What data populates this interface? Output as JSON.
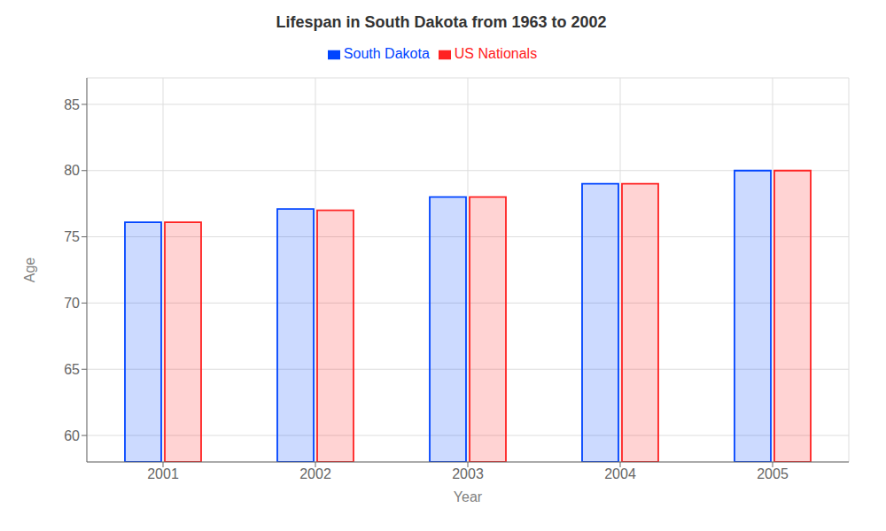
{
  "chart_data": {
    "type": "bar",
    "title": "Lifespan in South Dakota from 1963 to 2002",
    "xlabel": "Year",
    "ylabel": "Age",
    "categories": [
      "2001",
      "2002",
      "2003",
      "2004",
      "2005"
    ],
    "series": [
      {
        "name": "South Dakota",
        "color": "#0044ff",
        "values": [
          76.1,
          77.1,
          78.0,
          79.0,
          80.0
        ]
      },
      {
        "name": "US Nationals",
        "color": "#ff2222",
        "values": [
          76.1,
          77.0,
          78.0,
          79.0,
          80.0
        ]
      }
    ],
    "ylim": [
      58,
      87
    ],
    "yticks": [
      60,
      65,
      70,
      75,
      80,
      85
    ],
    "grid": true,
    "legend": "top"
  }
}
